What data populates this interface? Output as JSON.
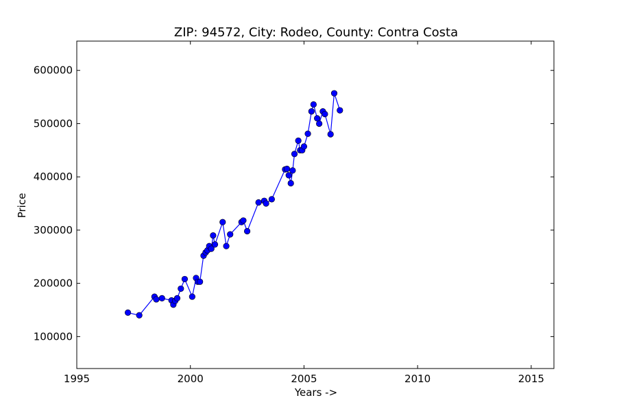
{
  "chart_data": {
    "type": "line",
    "title": "ZIP: 94572, City: Rodeo, County: Contra Costa",
    "xlabel": "Years ->",
    "ylabel": "Price",
    "xlim": [
      1995,
      2016
    ],
    "ylim": [
      40000,
      655000
    ],
    "xticks": [
      1995,
      2000,
      2005,
      2010,
      2015
    ],
    "yticks": [
      100000,
      200000,
      300000,
      400000,
      500000,
      600000
    ],
    "grid": false,
    "legend": "none",
    "series": [
      {
        "color": "#0000ff",
        "marker": "circle",
        "x": [
          1997.25,
          1997.75,
          1998.42,
          1998.5,
          1998.75,
          1999.17,
          1999.25,
          1999.33,
          1999.42,
          1999.58,
          1999.75,
          2000.08,
          2000.25,
          2000.33,
          2000.42,
          2000.58,
          2000.67,
          2000.75,
          2000.83,
          2000.92,
          2001.0,
          2001.08,
          2001.42,
          2001.58,
          2001.75,
          2002.25,
          2002.33,
          2002.5,
          2003.0,
          2003.25,
          2003.33,
          2003.58,
          2004.17,
          2004.25,
          2004.33,
          2004.42,
          2004.5,
          2004.58,
          2004.75,
          2004.83,
          2004.92,
          2005.0,
          2005.17,
          2005.33,
          2005.42,
          2005.58,
          2005.67,
          2005.83,
          2005.92,
          2006.17,
          2006.33,
          2006.58
        ],
        "y": [
          145000,
          140000,
          175000,
          170000,
          172000,
          168000,
          160000,
          167000,
          172000,
          190000,
          208000,
          175000,
          210000,
          203000,
          203000,
          252000,
          258000,
          262000,
          270000,
          265000,
          290000,
          273000,
          315000,
          270000,
          292000,
          315000,
          318000,
          298000,
          352000,
          355000,
          350000,
          358000,
          414000,
          415000,
          403000,
          388000,
          412000,
          443000,
          468000,
          450000,
          450000,
          457000,
          481000,
          523000,
          536000,
          510000,
          500000,
          523000,
          518000,
          480000,
          557000,
          525000
        ]
      }
    ]
  }
}
